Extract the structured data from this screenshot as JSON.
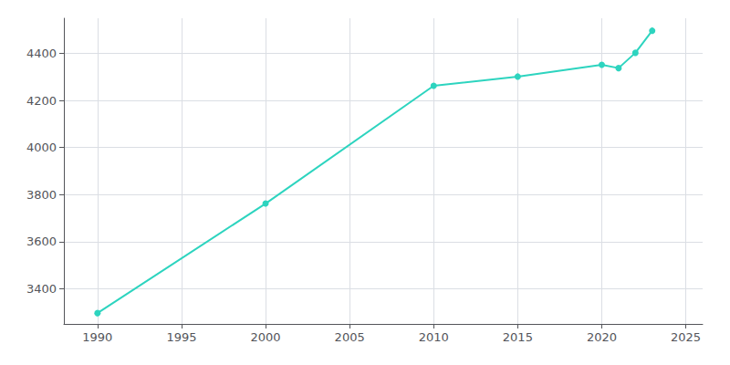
{
  "chart_data": {
    "type": "line",
    "x": [
      1990,
      2000,
      2010,
      2015,
      2020,
      2021,
      2022,
      2023
    ],
    "values": [
      3296,
      3762,
      4263,
      4302,
      4352,
      4338,
      4403,
      4497
    ],
    "color": "#2DD4BF",
    "marker": "circle",
    "xlim": [
      1988,
      2026
    ],
    "ylim": [
      3250,
      4550
    ],
    "xticks": [
      1990,
      1995,
      2000,
      2005,
      2010,
      2015,
      2020,
      2025
    ],
    "yticks": [
      3400,
      3600,
      3800,
      4000,
      4200,
      4400
    ],
    "grid": true
  }
}
